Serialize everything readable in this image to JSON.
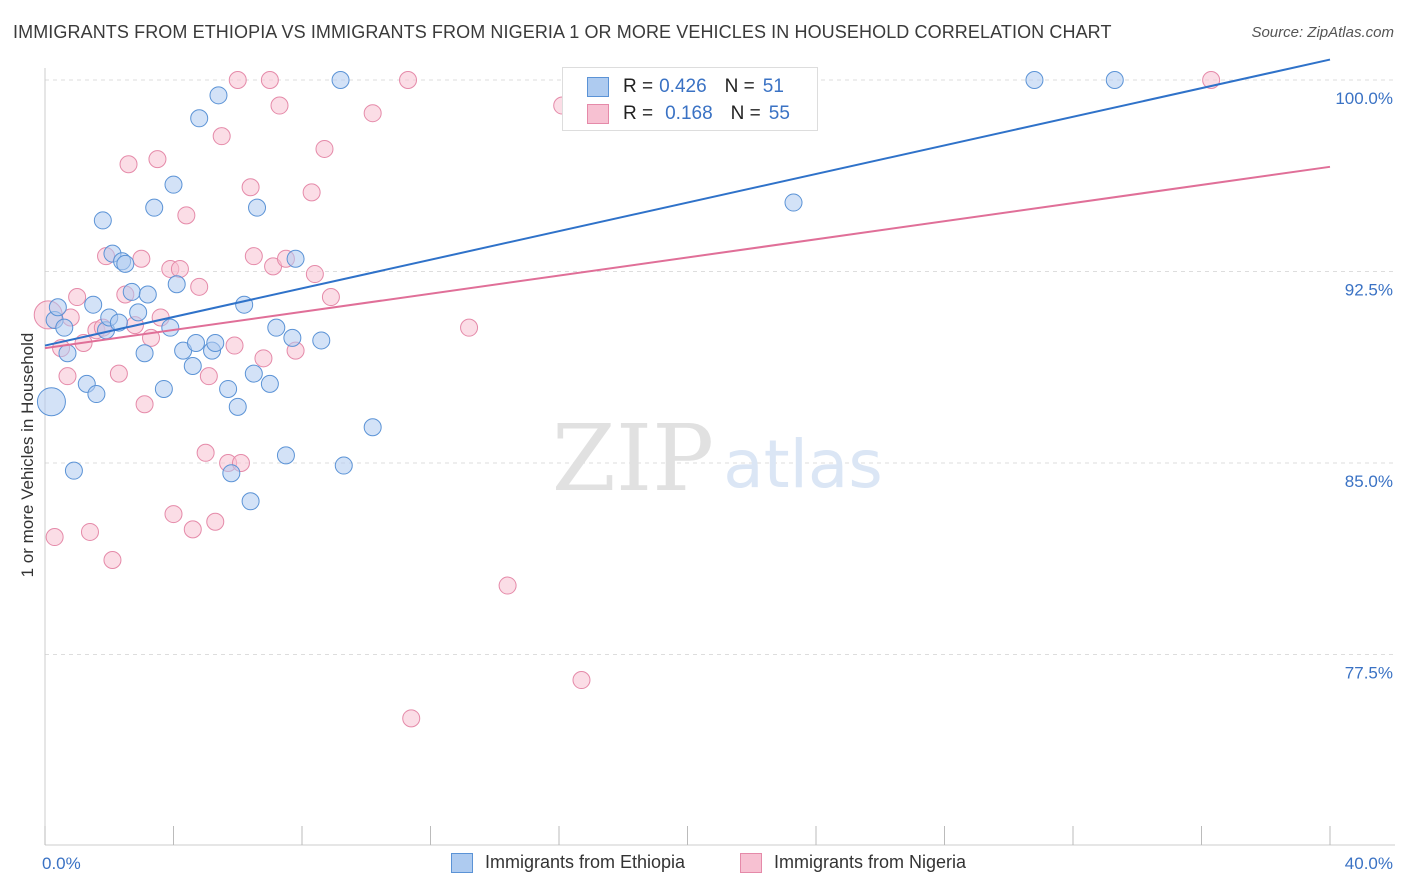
{
  "title": "IMMIGRANTS FROM ETHIOPIA VS IMMIGRANTS FROM NIGERIA 1 OR MORE VEHICLES IN HOUSEHOLD CORRELATION CHART",
  "source": "Source: ZipAtlas.com",
  "watermark": {
    "zip": "ZIP",
    "atlas": "atlas"
  },
  "legend": {
    "r_label": "R =",
    "n_label": "N =",
    "ethiopia": {
      "r": "0.426",
      "n": "51"
    },
    "nigeria": {
      "r": "0.168",
      "n": "55"
    }
  },
  "colors": {
    "ethiopia_fill": "#aecbf0",
    "ethiopia_stroke": "#5b93d6",
    "ethiopia_line": "#2f72c9",
    "nigeria_fill": "#f7c1d2",
    "nigeria_stroke": "#e58aa9",
    "nigeria_line": "#e06f98",
    "axis_text": "#3a72c4",
    "grid": "#dddddd"
  },
  "chart_data": {
    "type": "scatter",
    "title": "IMMIGRANTS FROM ETHIOPIA VS IMMIGRANTS FROM NIGERIA 1 OR MORE VEHICLES IN HOUSEHOLD CORRELATION CHART",
    "xlabel": "",
    "ylabel": "1 or more Vehicles in Household",
    "xlim": [
      0,
      40
    ],
    "ylim": [
      70.0,
      101.0
    ],
    "x_tick_labels": [
      "0.0%",
      "40.0%"
    ],
    "y_ticks": [
      77.5,
      85.0,
      92.5,
      100.0
    ],
    "y_tick_labels": [
      "77.5%",
      "85.0%",
      "92.5%",
      "100.0%"
    ],
    "grid": true,
    "legend_position": "top-center",
    "series": [
      {
        "name": "Immigrants from Ethiopia",
        "r": 0.426,
        "n": 51,
        "trend": {
          "x": [
            0,
            40
          ],
          "y": [
            89.6,
            100.8
          ]
        },
        "points": [
          {
            "x": 0.2,
            "y": 87.4,
            "size": "large"
          },
          {
            "x": 0.3,
            "y": 90.6
          },
          {
            "x": 0.4,
            "y": 91.1
          },
          {
            "x": 0.6,
            "y": 90.3
          },
          {
            "x": 0.7,
            "y": 89.3
          },
          {
            "x": 0.9,
            "y": 84.7
          },
          {
            "x": 1.3,
            "y": 88.1
          },
          {
            "x": 1.5,
            "y": 91.2
          },
          {
            "x": 1.6,
            "y": 87.7
          },
          {
            "x": 1.8,
            "y": 94.5
          },
          {
            "x": 1.9,
            "y": 90.2
          },
          {
            "x": 2.0,
            "y": 90.7
          },
          {
            "x": 2.1,
            "y": 93.2
          },
          {
            "x": 2.3,
            "y": 90.5
          },
          {
            "x": 2.4,
            "y": 92.9
          },
          {
            "x": 2.5,
            "y": 92.8
          },
          {
            "x": 2.7,
            "y": 91.7
          },
          {
            "x": 2.9,
            "y": 90.9
          },
          {
            "x": 3.1,
            "y": 89.3
          },
          {
            "x": 3.2,
            "y": 91.6
          },
          {
            "x": 3.4,
            "y": 95.0
          },
          {
            "x": 3.7,
            "y": 87.9
          },
          {
            "x": 3.9,
            "y": 90.3
          },
          {
            "x": 4.0,
            "y": 95.9
          },
          {
            "x": 4.1,
            "y": 92.0
          },
          {
            "x": 4.3,
            "y": 89.4
          },
          {
            "x": 4.6,
            "y": 88.8
          },
          {
            "x": 4.7,
            "y": 89.7
          },
          {
            "x": 4.8,
            "y": 98.5
          },
          {
            "x": 5.2,
            "y": 89.4
          },
          {
            "x": 5.3,
            "y": 89.7
          },
          {
            "x": 5.4,
            "y": 99.4
          },
          {
            "x": 5.7,
            "y": 87.9
          },
          {
            "x": 5.8,
            "y": 84.6
          },
          {
            "x": 6.0,
            "y": 87.2
          },
          {
            "x": 6.2,
            "y": 91.2
          },
          {
            "x": 6.4,
            "y": 83.5
          },
          {
            "x": 6.5,
            "y": 88.5
          },
          {
            "x": 6.6,
            "y": 95.0
          },
          {
            "x": 7.0,
            "y": 88.1
          },
          {
            "x": 7.2,
            "y": 90.3
          },
          {
            "x": 7.5,
            "y": 85.3
          },
          {
            "x": 7.7,
            "y": 89.9
          },
          {
            "x": 7.8,
            "y": 93.0
          },
          {
            "x": 8.6,
            "y": 89.8
          },
          {
            "x": 9.2,
            "y": 100.0
          },
          {
            "x": 9.3,
            "y": 84.9
          },
          {
            "x": 10.2,
            "y": 86.4
          },
          {
            "x": 23.3,
            "y": 95.2
          },
          {
            "x": 30.8,
            "y": 100.0
          },
          {
            "x": 33.3,
            "y": 100.0
          }
        ]
      },
      {
        "name": "Immigrants from Nigeria",
        "r": 0.168,
        "n": 55,
        "trend": {
          "x": [
            0,
            40
          ],
          "y": [
            89.5,
            96.6
          ]
        },
        "points": [
          {
            "x": 0.1,
            "y": 90.8,
            "size": "large"
          },
          {
            "x": 0.3,
            "y": 82.1
          },
          {
            "x": 0.5,
            "y": 89.5
          },
          {
            "x": 0.7,
            "y": 88.4
          },
          {
            "x": 0.8,
            "y": 90.7
          },
          {
            "x": 1.0,
            "y": 91.5
          },
          {
            "x": 1.2,
            "y": 89.7
          },
          {
            "x": 1.4,
            "y": 82.3
          },
          {
            "x": 1.6,
            "y": 90.2
          },
          {
            "x": 1.8,
            "y": 90.3
          },
          {
            "x": 1.9,
            "y": 93.1
          },
          {
            "x": 2.1,
            "y": 81.2
          },
          {
            "x": 2.3,
            "y": 88.5
          },
          {
            "x": 2.5,
            "y": 91.6
          },
          {
            "x": 2.6,
            "y": 96.7
          },
          {
            "x": 2.8,
            "y": 90.4
          },
          {
            "x": 3.0,
            "y": 93.0
          },
          {
            "x": 3.1,
            "y": 87.3
          },
          {
            "x": 3.3,
            "y": 89.9
          },
          {
            "x": 3.5,
            "y": 96.9
          },
          {
            "x": 3.6,
            "y": 90.7
          },
          {
            "x": 3.9,
            "y": 92.6
          },
          {
            "x": 4.0,
            "y": 83.0
          },
          {
            "x": 4.2,
            "y": 92.6
          },
          {
            "x": 4.4,
            "y": 94.7
          },
          {
            "x": 4.6,
            "y": 82.4
          },
          {
            "x": 4.8,
            "y": 91.9
          },
          {
            "x": 5.0,
            "y": 85.4
          },
          {
            "x": 5.1,
            "y": 88.4
          },
          {
            "x": 5.3,
            "y": 82.7
          },
          {
            "x": 5.5,
            "y": 97.8
          },
          {
            "x": 5.7,
            "y": 85.0
          },
          {
            "x": 5.9,
            "y": 89.6
          },
          {
            "x": 6.0,
            "y": 100.0
          },
          {
            "x": 6.1,
            "y": 85.0
          },
          {
            "x": 6.4,
            "y": 95.8
          },
          {
            "x": 6.5,
            "y": 93.1
          },
          {
            "x": 6.8,
            "y": 89.1
          },
          {
            "x": 7.0,
            "y": 100.0
          },
          {
            "x": 7.1,
            "y": 92.7
          },
          {
            "x": 7.3,
            "y": 99.0
          },
          {
            "x": 7.5,
            "y": 93.0
          },
          {
            "x": 7.8,
            "y": 89.4
          },
          {
            "x": 8.3,
            "y": 95.6
          },
          {
            "x": 8.4,
            "y": 92.4
          },
          {
            "x": 8.7,
            "y": 97.3
          },
          {
            "x": 8.9,
            "y": 91.5
          },
          {
            "x": 10.2,
            "y": 98.7
          },
          {
            "x": 11.3,
            "y": 100.0
          },
          {
            "x": 11.4,
            "y": 75.0
          },
          {
            "x": 13.2,
            "y": 90.3
          },
          {
            "x": 14.4,
            "y": 80.2
          },
          {
            "x": 16.1,
            "y": 99.0
          },
          {
            "x": 16.7,
            "y": 76.5
          },
          {
            "x": 36.3,
            "y": 100.0
          }
        ]
      }
    ]
  }
}
